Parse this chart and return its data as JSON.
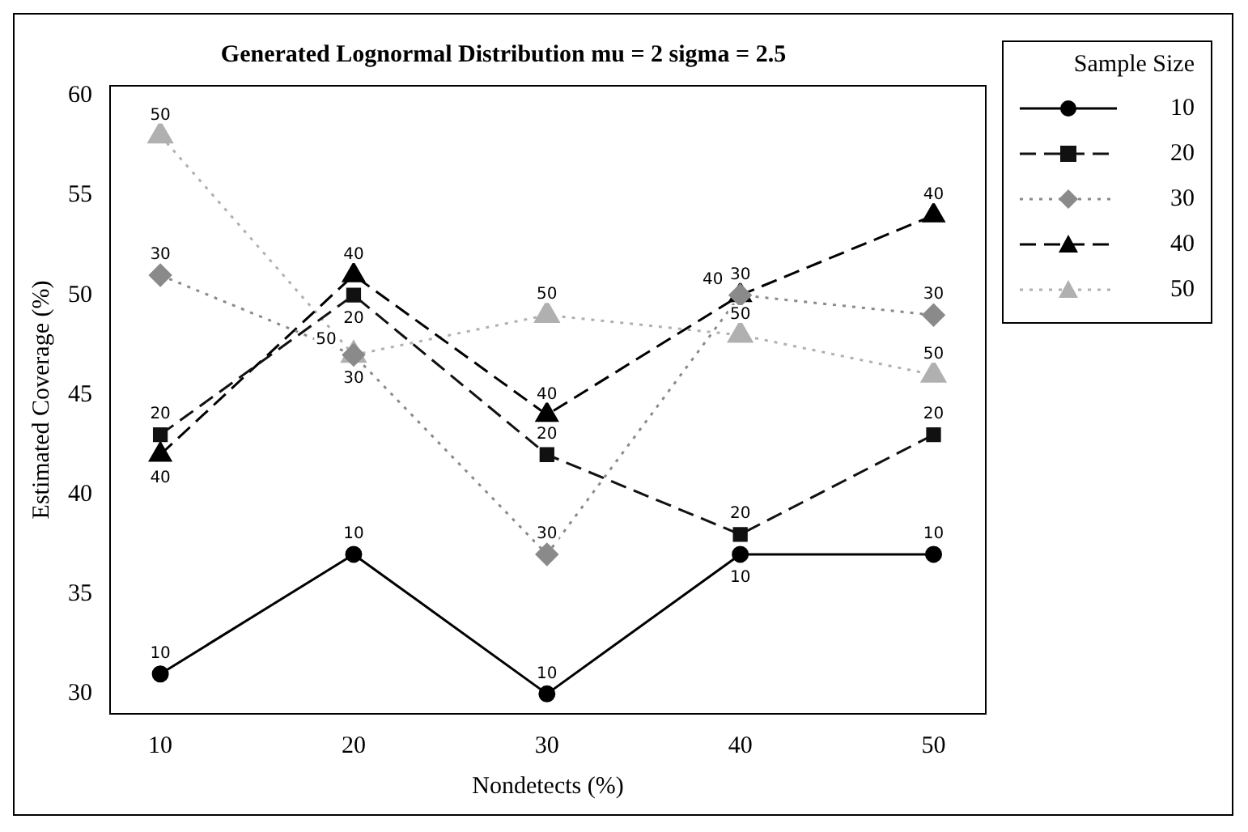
{
  "chart_data": {
    "type": "line",
    "title": "Generated Lognormal Distribution mu = 2 sigma = 2.5",
    "xlabel": "Nondetects (%)",
    "ylabel": "Estimated Coverage (%)",
    "legend_title": "Sample Size",
    "x": [
      10,
      20,
      30,
      40,
      50
    ],
    "series": [
      {
        "name": "10",
        "color": "#000000",
        "marker": "circle",
        "line_style": "solid",
        "values": [
          31,
          37,
          30,
          37,
          37
        ]
      },
      {
        "name": "20",
        "color": "#111111",
        "marker": "square",
        "line_style": "dashed",
        "values": [
          43,
          50,
          42,
          38,
          43
        ]
      },
      {
        "name": "30",
        "color": "#8a8a8a",
        "marker": "diamond",
        "line_style": "dotted",
        "values": [
          51,
          47,
          37,
          50,
          49
        ]
      },
      {
        "name": "40",
        "color": "#000000",
        "marker": "triangle",
        "line_style": "dashed",
        "values": [
          42,
          51,
          44,
          50,
          54
        ]
      },
      {
        "name": "50",
        "color": "#b0b0b0",
        "marker": "triangle",
        "line_style": "dotted",
        "values": [
          58,
          47,
          49,
          48,
          46
        ]
      }
    ],
    "xlim": [
      7.4,
      52.7
    ],
    "xticks": [
      10,
      20,
      30,
      40,
      50
    ],
    "ylim": [
      29,
      60.5
    ],
    "yticks": [
      30,
      35,
      40,
      45,
      50,
      55,
      60
    ],
    "grid": false,
    "legend": "top right"
  }
}
